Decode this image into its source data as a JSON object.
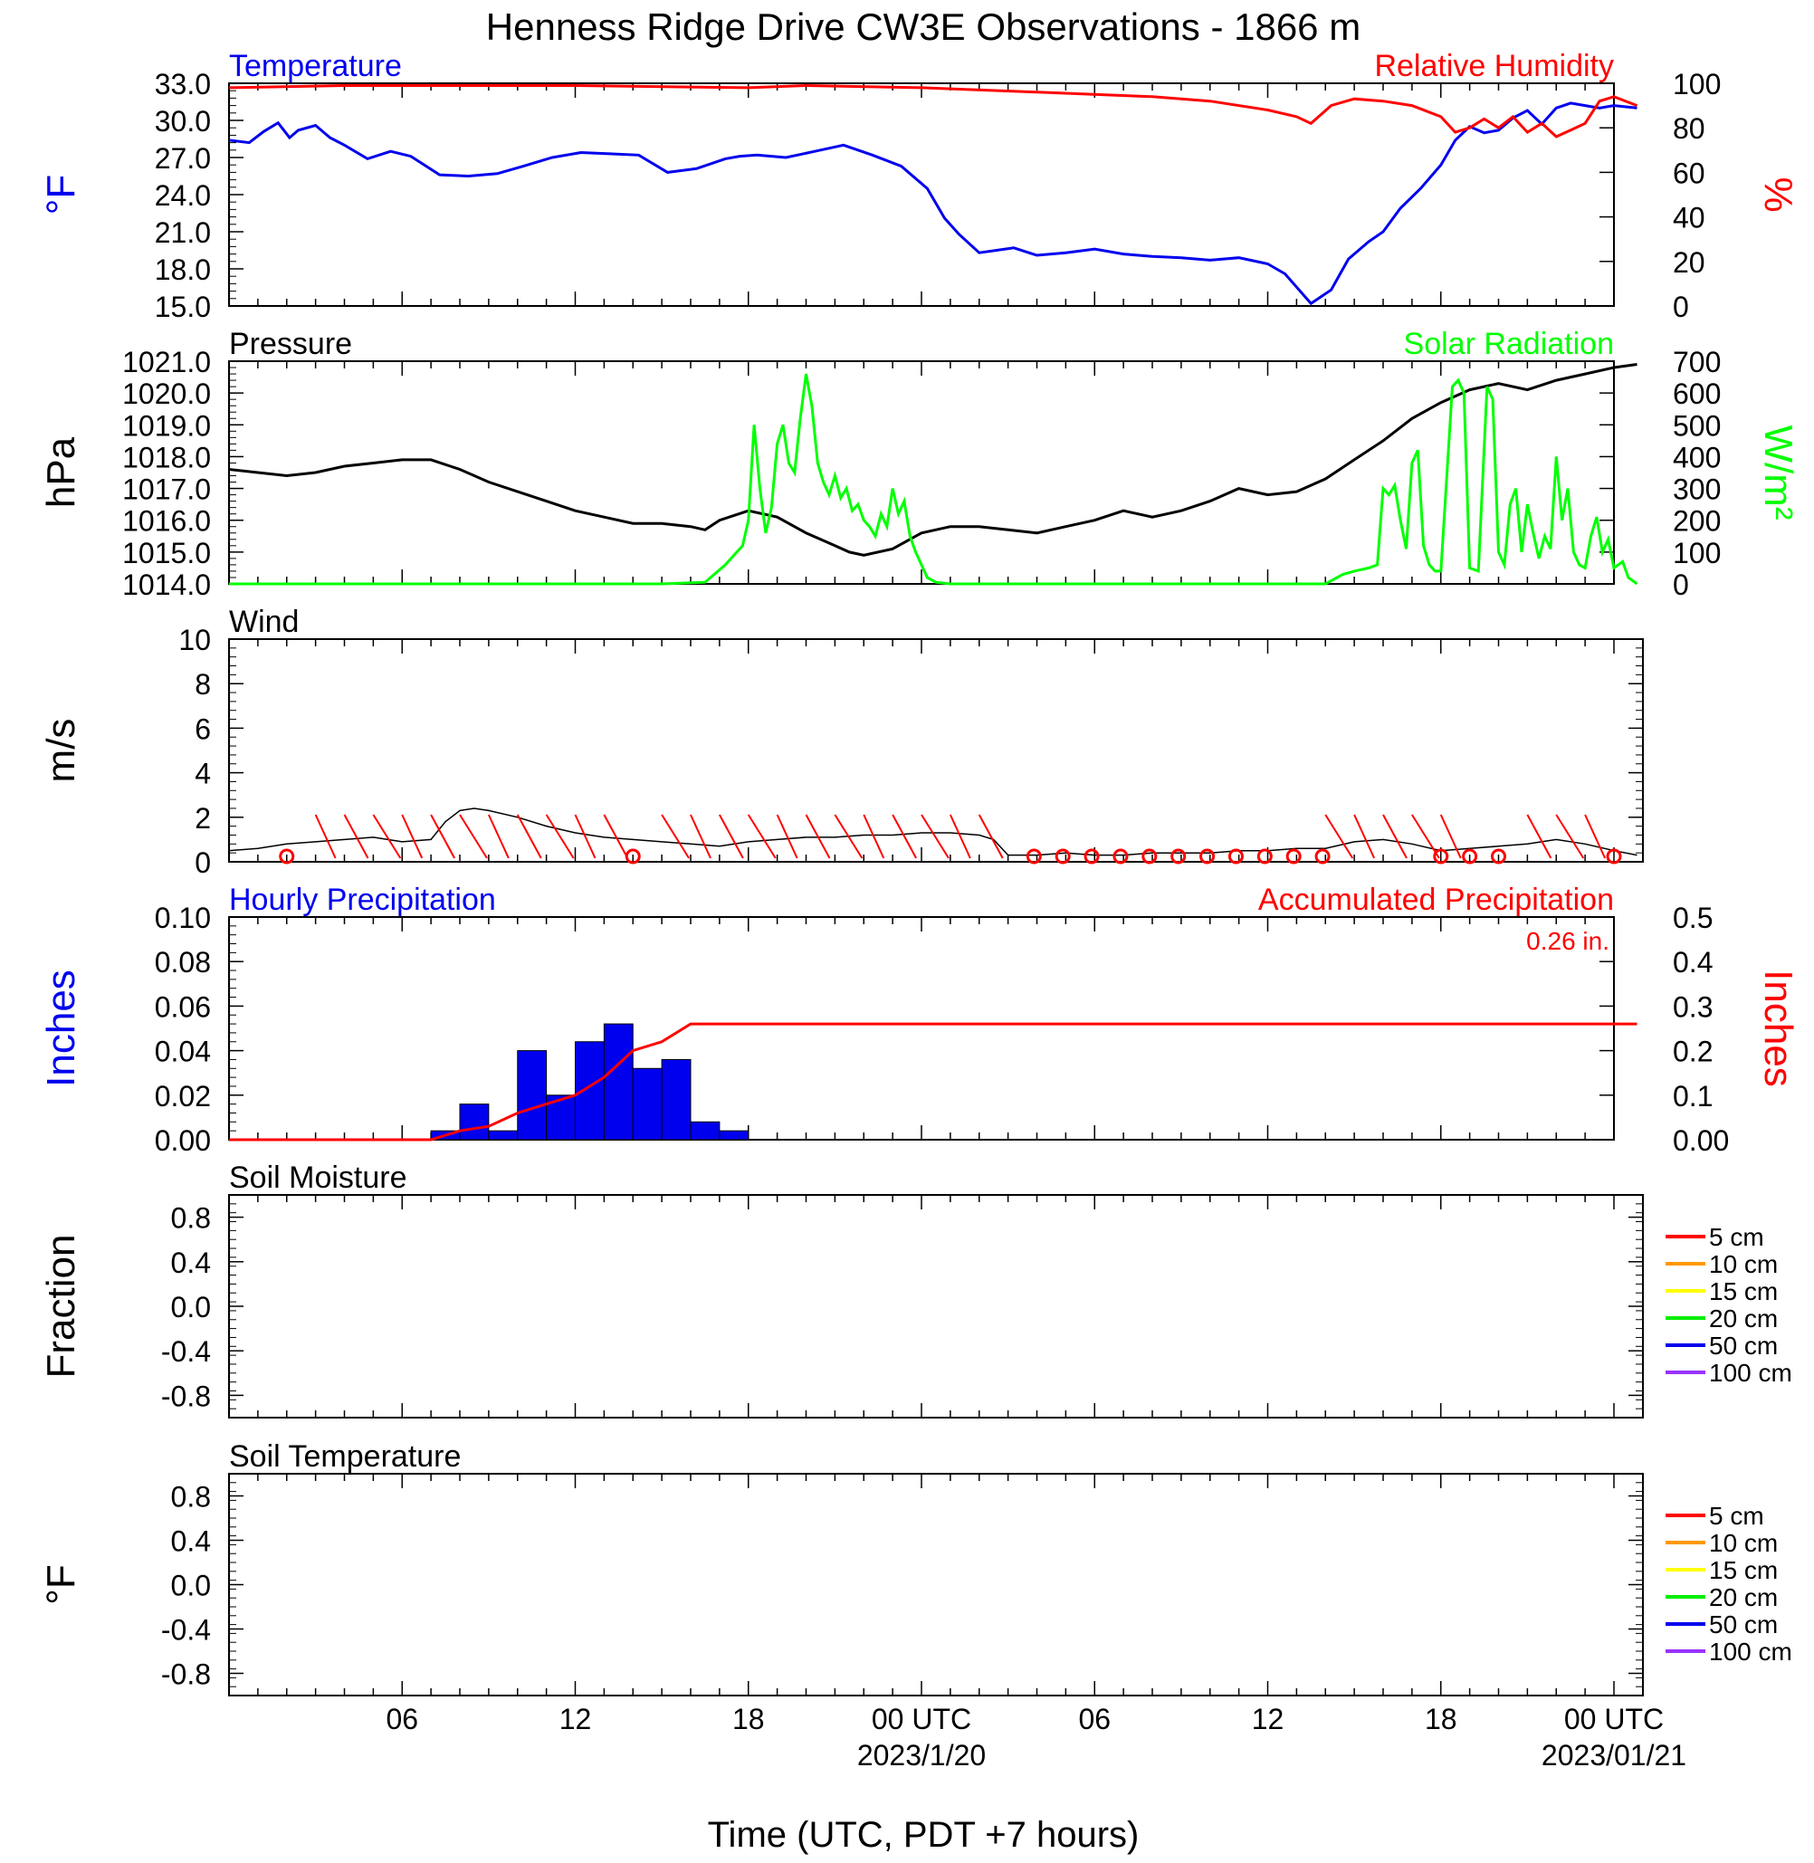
{
  "title": "Henness Ridge Drive CW3E Observations - 1866 m",
  "x_axis": {
    "title": "Time (UTC, PDT +7 hours)",
    "range_hours": [
      -2,
      46
    ],
    "ticks": [
      {
        "hour": 4,
        "label": "06",
        "date": ""
      },
      {
        "hour": 10,
        "label": "12",
        "date": ""
      },
      {
        "hour": 16,
        "label": "18",
        "date": ""
      },
      {
        "hour": 22,
        "label": "00 UTC",
        "date": "2023/1/20"
      },
      {
        "hour": 28,
        "label": "06",
        "date": ""
      },
      {
        "hour": 34,
        "label": "12",
        "date": ""
      },
      {
        "hour": 40,
        "label": "18",
        "date": ""
      },
      {
        "hour": 46,
        "label": "00 UTC",
        "date": "2023/01/21"
      }
    ]
  },
  "colors": {
    "temperature": "#0000ee",
    "humidity": "#ff0000",
    "pressure": "#000000",
    "solar": "#00ff00",
    "wind_line": "#000000",
    "wind_barb": "#ff0000",
    "precip_bar": "#0000ee",
    "precip_accum": "#ff0000"
  },
  "chart_data": [
    {
      "type": "line",
      "panel": "temperature-humidity",
      "left_title": "Temperature",
      "right_title": "Relative Humidity",
      "ylabel_left": "°F",
      "ylabel_right": "%",
      "ylim_left": [
        15,
        33
      ],
      "ylim_right": [
        0,
        100
      ],
      "yticks_left": [
        "15.0",
        "18.0",
        "21.0",
        "24.0",
        "27.0",
        "30.0",
        "33.0"
      ],
      "yticks_right": [
        "0",
        "20",
        "40",
        "60",
        "80",
        "100"
      ],
      "series": [
        {
          "name": "Temperature",
          "axis": "left",
          "x": [
            -2,
            -1.3,
            -0.8,
            -0.3,
            0.1,
            0.4,
            1,
            1.5,
            2,
            2.8,
            3.6,
            4.3,
            5.3,
            6.3,
            7.3,
            8.2,
            9.2,
            10.2,
            11.2,
            12.2,
            13.2,
            14.2,
            15.2,
            15.7,
            16.3,
            17.3,
            18.3,
            19.3,
            20.3,
            21.3,
            22.2,
            22.8,
            23.3,
            24,
            24.6,
            25.2,
            26,
            27,
            28,
            29,
            30,
            31,
            32,
            33,
            34,
            34.6,
            35.5,
            36.2,
            36.8,
            37.5,
            38,
            38.6,
            39.3,
            40,
            40.5,
            41,
            41.5,
            42,
            42.5,
            43,
            43.5,
            44,
            44.5,
            45,
            45.5,
            46,
            46.8
          ],
          "values": [
            28.4,
            28.2,
            29.1,
            29.8,
            28.6,
            29.2,
            29.6,
            28.6,
            28.0,
            26.9,
            27.5,
            27.1,
            25.6,
            25.5,
            25.7,
            26.3,
            27.0,
            27.4,
            27.3,
            27.2,
            25.8,
            26.1,
            26.9,
            27.1,
            27.2,
            27.0,
            27.5,
            28.0,
            27.2,
            26.3,
            24.5,
            22.1,
            20.8,
            19.3,
            19.5,
            19.7,
            19.1,
            19.3,
            19.6,
            19.2,
            19.0,
            18.9,
            18.7,
            18.9,
            18.4,
            17.6,
            15.2,
            16.3,
            18.8,
            20.2,
            21.0,
            22.9,
            24.5,
            26.4,
            28.4,
            29.5,
            29.0,
            29.2,
            30.2,
            30.8,
            29.7,
            31.0,
            31.4,
            31.2,
            31.0,
            31.2,
            31.0
          ],
          "color": "#0000ee"
        },
        {
          "name": "Relative Humidity",
          "axis": "right",
          "x": [
            -2,
            2,
            6,
            10,
            16,
            18,
            22,
            26,
            30,
            32,
            34,
            35,
            35.5,
            36.2,
            37,
            38,
            39,
            40,
            40.5,
            41,
            41.5,
            42,
            42.5,
            43,
            43.5,
            44,
            44.5,
            45,
            45.5,
            46,
            46.8
          ],
          "values": [
            98,
            99,
            99,
            99,
            98,
            99,
            98,
            96,
            94,
            92,
            88,
            85,
            82,
            90,
            93,
            92,
            90,
            85,
            78,
            80,
            84,
            80,
            85,
            78,
            82,
            76,
            79,
            82,
            92,
            94,
            90
          ],
          "color": "#ff0000"
        }
      ]
    },
    {
      "type": "line",
      "panel": "pressure-solar",
      "left_title": "Pressure",
      "right_title": "Solar Radiation",
      "ylabel_left": "hPa",
      "ylabel_right": "W/m²",
      "ylim_left": [
        1014,
        1021
      ],
      "ylim_right": [
        0,
        700
      ],
      "yticks_left": [
        "1014.0",
        "1015.0",
        "1016.0",
        "1017.0",
        "1018.0",
        "1019.0",
        "1020.0",
        "1021.0"
      ],
      "yticks_right": [
        "0",
        "100",
        "200",
        "300",
        "400",
        "500",
        "600",
        "700"
      ],
      "series": [
        {
          "name": "Pressure",
          "axis": "left",
          "x": [
            -2,
            -1,
            0,
            1,
            2,
            3,
            4,
            5,
            6,
            7,
            8,
            9,
            10,
            11,
            12,
            13,
            14,
            14.5,
            15,
            16,
            17,
            18,
            19,
            19.5,
            20,
            21,
            22,
            23,
            24,
            25,
            26,
            27,
            28,
            29,
            30,
            31,
            32,
            33,
            34,
            35,
            36,
            37,
            38,
            39,
            40,
            41,
            42,
            43,
            44,
            45,
            46,
            46.8
          ],
          "values": [
            1017.6,
            1017.5,
            1017.4,
            1017.5,
            1017.7,
            1017.8,
            1017.9,
            1017.9,
            1017.6,
            1017.2,
            1016.9,
            1016.6,
            1016.3,
            1016.1,
            1015.9,
            1015.9,
            1015.8,
            1015.7,
            1016.0,
            1016.3,
            1016.1,
            1015.6,
            1015.2,
            1015.0,
            1014.9,
            1015.1,
            1015.6,
            1015.8,
            1015.8,
            1015.7,
            1015.6,
            1015.8,
            1016.0,
            1016.3,
            1016.1,
            1016.3,
            1016.6,
            1017.0,
            1016.8,
            1016.9,
            1017.3,
            1017.9,
            1018.5,
            1019.2,
            1019.7,
            1020.1,
            1020.3,
            1020.1,
            1020.4,
            1020.6,
            1020.8,
            1020.9
          ],
          "color": "#000000"
        },
        {
          "name": "Solar Radiation",
          "axis": "right",
          "x": [
            -2,
            13,
            14.5,
            15.2,
            15.5,
            15.8,
            16.0,
            16.2,
            16.4,
            16.6,
            16.8,
            17.0,
            17.2,
            17.4,
            17.6,
            17.8,
            18.0,
            18.2,
            18.4,
            18.6,
            18.8,
            19.0,
            19.2,
            19.4,
            19.6,
            19.8,
            20.0,
            20.2,
            20.4,
            20.6,
            20.8,
            21.0,
            21.2,
            21.4,
            21.6,
            21.8,
            22.0,
            22.2,
            22.5,
            23,
            36,
            36.6,
            37,
            37.5,
            37.8,
            38.0,
            38.2,
            38.4,
            38.6,
            38.8,
            39.0,
            39.2,
            39.4,
            39.6,
            39.8,
            40.0,
            40.4,
            40.6,
            40.8,
            41.0,
            41.3,
            41.6,
            41.8,
            42.0,
            42.2,
            42.4,
            42.6,
            42.8,
            43.0,
            43.2,
            43.4,
            43.6,
            43.8,
            44.0,
            44.2,
            44.4,
            44.6,
            44.8,
            45.0,
            45.2,
            45.4,
            45.6,
            45.8,
            46.0,
            46.3,
            46.5,
            46.8
          ],
          "values": [
            0,
            0,
            5,
            60,
            90,
            120,
            200,
            500,
            300,
            160,
            240,
            440,
            500,
            380,
            350,
            520,
            660,
            560,
            380,
            320,
            280,
            340,
            270,
            300,
            230,
            250,
            200,
            180,
            150,
            220,
            180,
            300,
            220,
            260,
            150,
            100,
            60,
            20,
            5,
            0,
            0,
            30,
            40,
            50,
            60,
            300,
            280,
            310,
            200,
            110,
            380,
            420,
            120,
            60,
            40,
            40,
            620,
            640,
            600,
            50,
            40,
            620,
            580,
            100,
            60,
            250,
            300,
            100,
            250,
            160,
            80,
            150,
            110,
            400,
            200,
            300,
            100,
            60,
            50,
            150,
            210,
            100,
            140,
            50,
            70,
            20,
            0
          ],
          "color": "#00ff00"
        }
      ]
    },
    {
      "type": "line",
      "panel": "wind",
      "left_title": "Wind",
      "ylabel_left": "m/s",
      "ylim_left": [
        0,
        10
      ],
      "yticks_left": [
        "0",
        "2",
        "4",
        "6",
        "8",
        "10"
      ],
      "series": [
        {
          "name": "Wind speed",
          "axis": "left",
          "x": [
            -2,
            -1,
            0,
            1,
            2,
            3,
            4,
            5,
            5.5,
            6,
            6.5,
            7,
            8,
            9,
            10,
            11,
            12,
            13,
            14,
            15,
            16,
            17,
            18,
            19,
            20,
            21,
            22,
            23,
            24,
            24.5,
            25,
            26,
            27,
            28,
            29,
            30,
            31,
            32,
            33,
            34,
            35,
            36,
            37,
            38,
            39,
            40,
            41,
            42,
            43,
            44,
            45,
            46,
            46.8
          ],
          "values": [
            0.5,
            0.6,
            0.8,
            0.9,
            1.0,
            1.1,
            0.9,
            1.0,
            1.8,
            2.3,
            2.4,
            2.3,
            2.0,
            1.6,
            1.3,
            1.1,
            1.0,
            0.9,
            0.8,
            0.7,
            0.9,
            1.0,
            1.1,
            1.1,
            1.2,
            1.2,
            1.3,
            1.3,
            1.2,
            1.0,
            0.3,
            0.3,
            0.4,
            0.3,
            0.3,
            0.4,
            0.4,
            0.4,
            0.5,
            0.5,
            0.6,
            0.6,
            0.9,
            1.0,
            0.8,
            0.5,
            0.6,
            0.7,
            0.8,
            1.0,
            0.8,
            0.5,
            0.3
          ],
          "color": "#000000"
        }
      ],
      "calm_markers_hours": [
        0,
        12,
        25.9,
        26.9,
        27.9,
        28.9,
        29.9,
        30.9,
        31.9,
        32.9,
        33.9,
        34.9,
        35.9,
        40,
        41,
        42,
        46
      ],
      "barb_hours": [
        1,
        2,
        3,
        4,
        5,
        6,
        7,
        8,
        9,
        10,
        11,
        13,
        14,
        15,
        16,
        17,
        18,
        19,
        20,
        21,
        22,
        23,
        24,
        36,
        37,
        38,
        39,
        40,
        43,
        44,
        45
      ]
    },
    {
      "type": "bar",
      "panel": "precipitation",
      "left_title": "Hourly Precipitation",
      "right_title": "Accumulated Precipitation",
      "total_label": "0.26 in.",
      "ylabel_left": "Inches",
      "ylabel_right": "Inches",
      "ylim_left": [
        0,
        0.1
      ],
      "ylim_right": [
        0,
        0.5
      ],
      "yticks_left": [
        "0.00",
        "0.02",
        "0.04",
        "0.06",
        "0.08",
        "0.10"
      ],
      "yticks_right": [
        "0.00",
        "0.1",
        "0.2",
        "0.3",
        "0.4",
        "0.5"
      ],
      "bars": {
        "start_hours": [
          5,
          6,
          7,
          8,
          9,
          10,
          11,
          12,
          13,
          14,
          15,
          16
        ],
        "values": [
          0.004,
          0.016,
          0.004,
          0.04,
          0.02,
          0.044,
          0.052,
          0.032,
          0.036,
          0.008,
          0.004,
          0
        ]
      },
      "accumulated": {
        "x": [
          -2,
          5,
          6,
          7,
          8,
          9,
          10,
          11,
          11.5,
          12,
          13,
          14,
          16,
          46.8
        ],
        "values": [
          0,
          0,
          0.02,
          0.03,
          0.06,
          0.08,
          0.1,
          0.14,
          0.17,
          0.2,
          0.22,
          0.26,
          0.26,
          0.26
        ]
      }
    },
    {
      "type": "line",
      "panel": "soil-moisture",
      "left_title": "Soil Moisture",
      "ylabel_left": "Fraction",
      "ylim_left": [
        -1,
        1
      ],
      "yticks_left": [
        "-0.8",
        "-0.4",
        "0.0",
        "0.4",
        "0.8"
      ],
      "series": []
    },
    {
      "type": "line",
      "panel": "soil-temperature",
      "left_title": "Soil Temperature",
      "ylabel_left": "°F",
      "ylim_left": [
        -1,
        1
      ],
      "yticks_left": [
        "-0.8",
        "-0.4",
        "0.0",
        "0.4",
        "0.8"
      ],
      "series": []
    }
  ],
  "soil_legend": [
    {
      "label": "5 cm",
      "color": "#ff0000"
    },
    {
      "label": "10 cm",
      "color": "#ff9900"
    },
    {
      "label": "15 cm",
      "color": "#ffff00"
    },
    {
      "label": "20 cm",
      "color": "#00ee00"
    },
    {
      "label": "50 cm",
      "color": "#0000ee"
    },
    {
      "label": "100 cm",
      "color": "#9933ff"
    }
  ]
}
